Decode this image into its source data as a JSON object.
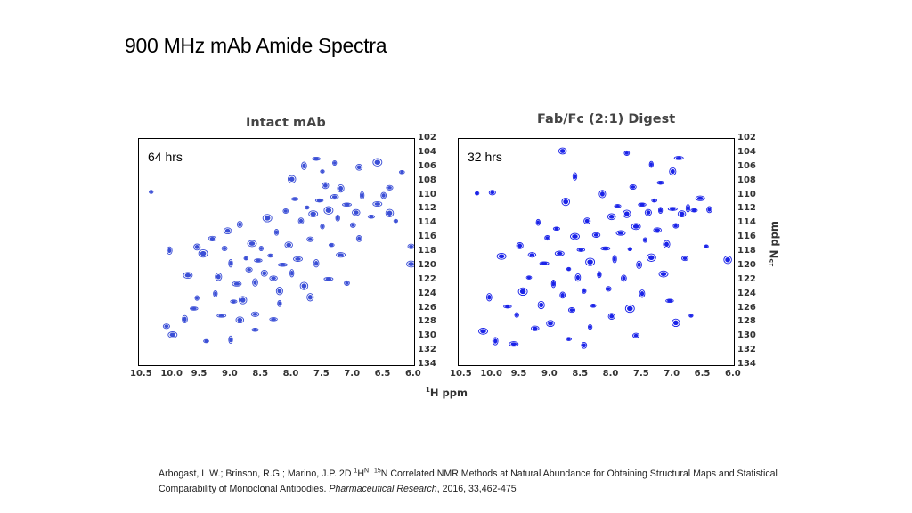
{
  "slide": {
    "title": "900 MHz mAb Amide Spectra"
  },
  "chart_data": [
    {
      "type": "scatter",
      "title": "Intact mAb",
      "annotation": "64 hrs",
      "xlabel": "1H ppm",
      "ylabel": "15N ppm",
      "xlim": [
        10.5,
        6.0
      ],
      "ylim": [
        102,
        134
      ],
      "xticks": [
        "10.5",
        "10.0",
        "9.5",
        "9.0",
        "8.5",
        "8.0",
        "7.5",
        "7.0",
        "6.5",
        "6.0"
      ],
      "yticks": [
        "102",
        "104",
        "106",
        "108",
        "110",
        "112",
        "114",
        "116",
        "118",
        "120",
        "122",
        "124",
        "126",
        "128",
        "130",
        "132",
        "134"
      ],
      "color": "#3b4fd6",
      "points": [
        [
          10.3,
          109.5
        ],
        [
          10.05,
          128.5
        ],
        [
          9.95,
          129.7
        ],
        [
          9.75,
          127.5
        ],
        [
          9.6,
          126.0
        ],
        [
          9.55,
          124.5
        ],
        [
          9.55,
          117.3
        ],
        [
          9.45,
          118.2
        ],
        [
          9.4,
          130.6
        ],
        [
          9.3,
          116.1
        ],
        [
          9.25,
          123.9
        ],
        [
          9.2,
          121.5
        ],
        [
          9.15,
          127.0
        ],
        [
          9.1,
          117.5
        ],
        [
          9.05,
          115.0
        ],
        [
          9.0,
          119.6
        ],
        [
          8.95,
          125.0
        ],
        [
          8.9,
          122.5
        ],
        [
          8.85,
          114.1
        ],
        [
          8.8,
          124.8
        ],
        [
          8.75,
          118.9
        ],
        [
          8.7,
          120.5
        ],
        [
          8.65,
          116.8
        ],
        [
          8.6,
          122.3
        ],
        [
          8.55,
          119.2
        ],
        [
          8.5,
          117.5
        ],
        [
          8.45,
          121.0
        ],
        [
          8.4,
          113.2
        ],
        [
          8.35,
          118.5
        ],
        [
          8.3,
          121.7
        ],
        [
          8.25,
          115.2
        ],
        [
          8.2,
          123.5
        ],
        [
          8.15,
          119.8
        ],
        [
          8.1,
          112.2
        ],
        [
          8.05,
          117.0
        ],
        [
          8.0,
          121.0
        ],
        [
          7.95,
          110.5
        ],
        [
          7.9,
          119.0
        ],
        [
          7.85,
          113.6
        ],
        [
          7.8,
          122.8
        ],
        [
          7.75,
          111.7
        ],
        [
          7.7,
          116.2
        ],
        [
          7.65,
          112.6
        ],
        [
          7.6,
          119.6
        ],
        [
          7.55,
          110.7
        ],
        [
          7.5,
          114.4
        ],
        [
          7.45,
          108.6
        ],
        [
          7.4,
          112.1
        ],
        [
          7.35,
          117.0
        ],
        [
          7.3,
          110.2
        ],
        [
          7.25,
          113.2
        ],
        [
          7.2,
          109.0
        ],
        [
          7.1,
          111.3
        ],
        [
          7.0,
          114.2
        ],
        [
          6.95,
          112.4
        ],
        [
          6.85,
          110.0
        ],
        [
          6.7,
          113.0
        ],
        [
          6.6,
          111.2
        ],
        [
          6.5,
          110.0
        ],
        [
          6.4,
          112.5
        ],
        [
          6.3,
          113.6
        ],
        [
          6.05,
          117.2
        ],
        [
          6.05,
          119.7
        ],
        [
          7.8,
          105.8
        ],
        [
          7.6,
          104.8
        ],
        [
          7.3,
          105.4
        ],
        [
          6.9,
          106.0
        ],
        [
          6.6,
          105.3
        ],
        [
          6.2,
          106.7
        ],
        [
          8.6,
          126.8
        ],
        [
          8.2,
          125.3
        ],
        [
          7.7,
          124.4
        ],
        [
          7.4,
          121.8
        ],
        [
          7.1,
          122.4
        ],
        [
          8.85,
          127.6
        ],
        [
          9.0,
          130.4
        ],
        [
          8.6,
          129.0
        ],
        [
          7.2,
          118.4
        ],
        [
          6.9,
          116.1
        ],
        [
          8.0,
          107.7
        ],
        [
          7.5,
          106.6
        ],
        [
          6.4,
          108.9
        ],
        [
          9.7,
          121.3
        ],
        [
          10.0,
          117.8
        ],
        [
          8.3,
          127.5
        ]
      ]
    },
    {
      "type": "scatter",
      "title": "Fab/Fc (2:1) Digest",
      "annotation": "32 hrs",
      "xlabel": "1H ppm",
      "ylabel": "15N ppm",
      "xlim": [
        10.5,
        6.0
      ],
      "ylim": [
        102,
        134
      ],
      "xticks": [
        "10.5",
        "10.0",
        "9.5",
        "9.0",
        "8.5",
        "8.0",
        "7.5",
        "7.0",
        "6.5",
        "6.0"
      ],
      "yticks": [
        "102",
        "104",
        "106",
        "108",
        "110",
        "112",
        "114",
        "116",
        "118",
        "120",
        "122",
        "124",
        "126",
        "128",
        "130",
        "132",
        "134"
      ],
      "color": "#1a23e8",
      "points": [
        [
          10.2,
          109.7
        ],
        [
          9.95,
          109.6
        ],
        [
          10.1,
          129.2
        ],
        [
          9.9,
          130.6
        ],
        [
          9.7,
          125.7
        ],
        [
          9.55,
          126.9
        ],
        [
          9.5,
          117.1
        ],
        [
          9.45,
          123.6
        ],
        [
          9.35,
          121.6
        ],
        [
          9.3,
          118.4
        ],
        [
          9.2,
          113.8
        ],
        [
          9.15,
          125.5
        ],
        [
          9.1,
          119.6
        ],
        [
          9.05,
          116.0
        ],
        [
          9.0,
          128.1
        ],
        [
          8.95,
          122.5
        ],
        [
          8.9,
          114.7
        ],
        [
          8.85,
          118.2
        ],
        [
          8.8,
          124.1
        ],
        [
          8.75,
          110.9
        ],
        [
          8.7,
          120.4
        ],
        [
          8.65,
          126.2
        ],
        [
          8.6,
          115.8
        ],
        [
          8.55,
          121.6
        ],
        [
          8.5,
          117.7
        ],
        [
          8.45,
          123.5
        ],
        [
          8.4,
          113.6
        ],
        [
          8.35,
          119.4
        ],
        [
          8.3,
          125.6
        ],
        [
          8.25,
          115.6
        ],
        [
          8.2,
          121.2
        ],
        [
          8.15,
          109.8
        ],
        [
          8.1,
          117.5
        ],
        [
          8.05,
          123.2
        ],
        [
          8.0,
          113.0
        ],
        [
          7.95,
          119.0
        ],
        [
          7.9,
          111.5
        ],
        [
          7.85,
          115.3
        ],
        [
          7.8,
          121.7
        ],
        [
          7.75,
          112.6
        ],
        [
          7.7,
          117.6
        ],
        [
          7.65,
          108.8
        ],
        [
          7.6,
          114.4
        ],
        [
          7.55,
          119.8
        ],
        [
          7.5,
          111.3
        ],
        [
          7.45,
          116.3
        ],
        [
          7.4,
          112.4
        ],
        [
          7.35,
          118.8
        ],
        [
          7.3,
          110.7
        ],
        [
          7.25,
          114.9
        ],
        [
          7.2,
          112.1
        ],
        [
          7.1,
          116.9
        ],
        [
          7.0,
          111.9
        ],
        [
          6.95,
          114.3
        ],
        [
          6.85,
          112.6
        ],
        [
          6.75,
          111.8
        ],
        [
          6.65,
          112.1
        ],
        [
          6.55,
          110.4
        ],
        [
          6.4,
          112.0
        ],
        [
          6.1,
          119.1
        ],
        [
          6.45,
          117.2
        ],
        [
          6.8,
          118.9
        ],
        [
          7.15,
          121.1
        ],
        [
          7.5,
          123.9
        ],
        [
          7.05,
          124.9
        ],
        [
          8.35,
          128.6
        ],
        [
          8.0,
          127.1
        ],
        [
          7.7,
          126.0
        ],
        [
          8.7,
          130.3
        ],
        [
          9.25,
          128.8
        ],
        [
          7.35,
          105.6
        ],
        [
          7.0,
          106.6
        ],
        [
          6.9,
          104.7
        ],
        [
          7.75,
          104.0
        ],
        [
          8.8,
          103.7
        ],
        [
          8.6,
          107.3
        ],
        [
          7.2,
          108.2
        ],
        [
          9.6,
          131.0
        ],
        [
          8.45,
          131.2
        ],
        [
          6.95,
          128.0
        ],
        [
          6.7,
          127.0
        ],
        [
          7.6,
          129.8
        ],
        [
          9.8,
          118.6
        ],
        [
          10.0,
          124.4
        ]
      ]
    }
  ],
  "citation": {
    "authors": "Arbogast, L.W.; Brinson, R.G.; Marino, J.P. 2D ",
    "h": "1",
    "hn": "H",
    "n_sup": "N",
    "sep": ", ",
    "n15": "15",
    "rest": "N Correlated NMR Methods at Natural Abundance for Obtaining Structural Maps and Statistical Comparability of Monoclonal Antibodies. ",
    "journal": "Pharmaceutical Research",
    "tail": ", 2016, 33,462-475"
  }
}
